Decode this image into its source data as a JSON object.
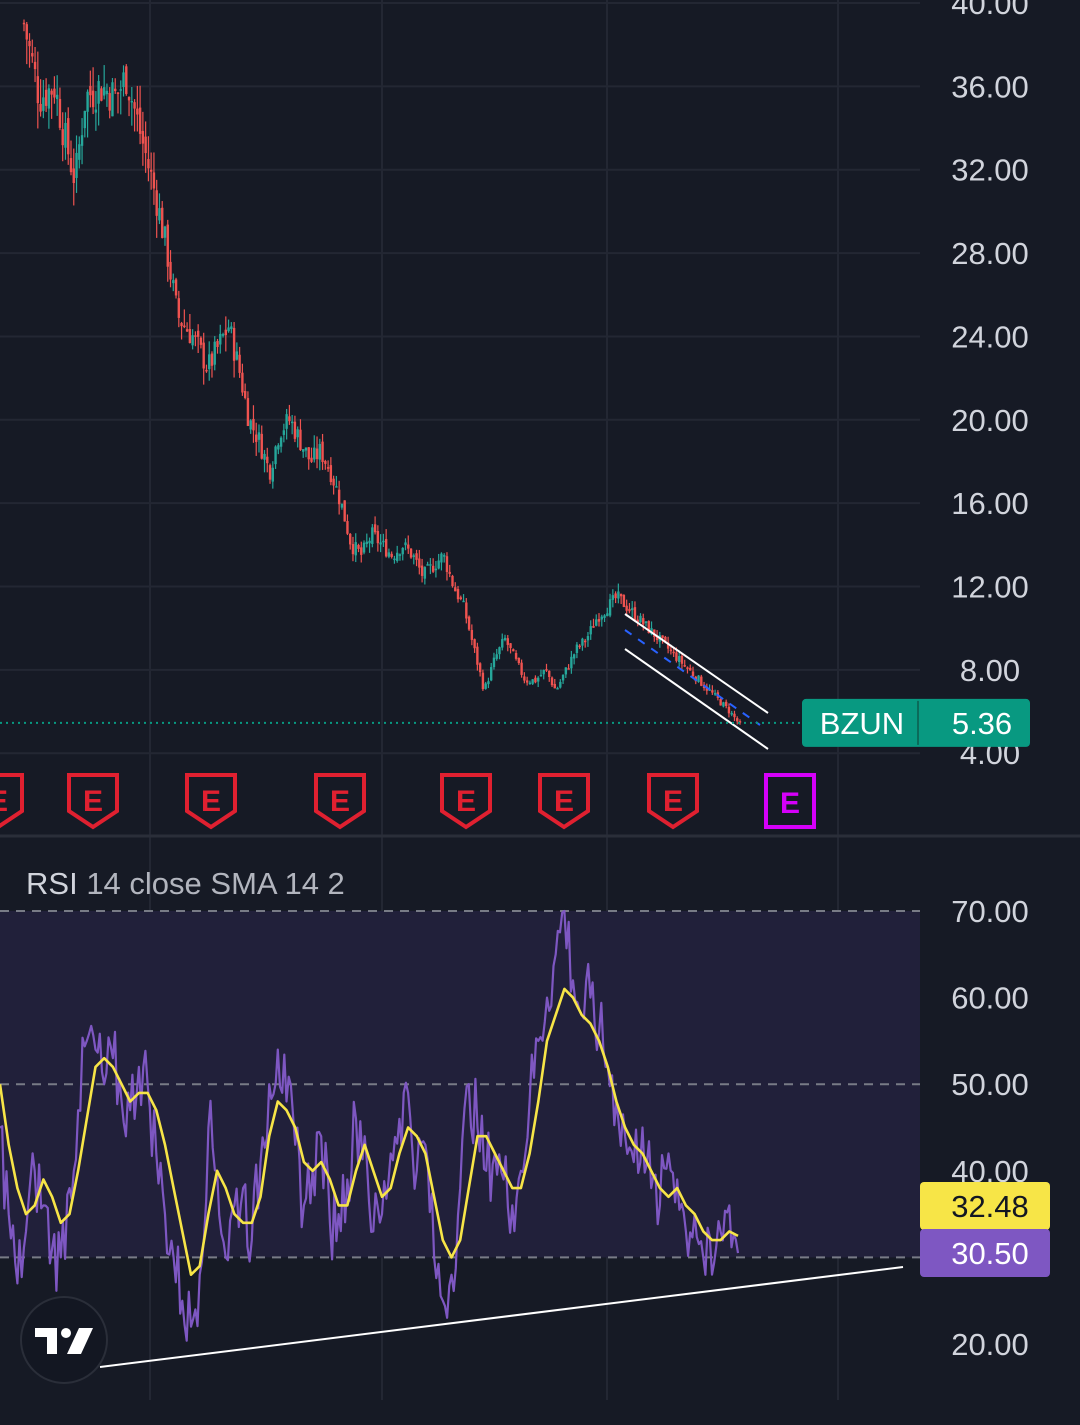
{
  "symbol": "BZUN",
  "last_price": "5.36",
  "colors": {
    "background": "#161a25",
    "grid": "#232733",
    "axis_text": "#d1d4dc",
    "up": "#26a69a",
    "down": "#ef5350",
    "price_badge": "#089981",
    "rsi_line": "#7e57c2",
    "rsi_ma": "#f7e547",
    "rsi_band_fill": "#21203a",
    "earnings_past": "#e02030",
    "earnings_future": "#d500f9",
    "trendline": "#ffffff"
  },
  "price_axis": {
    "ticks": [
      "40.00",
      "36.00",
      "32.00",
      "28.00",
      "24.00",
      "20.00",
      "16.00",
      "12.00",
      "8.00",
      "4.00"
    ]
  },
  "earnings": {
    "marker_label": "E",
    "past_count": 7,
    "upcoming_count": 1
  },
  "rsi": {
    "legend_name": "RSI",
    "legend_params": "14 close SMA 14 2",
    "axis_ticks": [
      "70.00",
      "60.00",
      "50.00",
      "40.00",
      "20.00"
    ],
    "ma_value": "32.48",
    "rsi_value": "30.50",
    "bands": [
      70,
      50,
      30
    ]
  },
  "chart_data": [
    {
      "type": "candlestick",
      "symbol": "BZUN",
      "ylim": [
        4,
        40
      ],
      "approx_close_path": [
        [
          0,
          39.0
        ],
        [
          3,
          35.5
        ],
        [
          6,
          36.0
        ],
        [
          8,
          33.5
        ],
        [
          10,
          31.5
        ],
        [
          12,
          35.5
        ],
        [
          15,
          36.0
        ],
        [
          18,
          35.5
        ],
        [
          20,
          36.5
        ],
        [
          22,
          34.5
        ],
        [
          24,
          32.5
        ],
        [
          26,
          30.5
        ],
        [
          28,
          28.0
        ],
        [
          30,
          25.0
        ],
        [
          33,
          24.0
        ],
        [
          36,
          22.5
        ],
        [
          38,
          23.5
        ],
        [
          40,
          24.5
        ],
        [
          42,
          22.5
        ],
        [
          44,
          20.0
        ],
        [
          46,
          19.0
        ],
        [
          48,
          17.5
        ],
        [
          50,
          19.5
        ],
        [
          52,
          20.0
        ],
        [
          54,
          19.0
        ],
        [
          56,
          18.0
        ],
        [
          58,
          18.5
        ],
        [
          60,
          17.5
        ],
        [
          62,
          16.0
        ],
        [
          64,
          14.0
        ],
        [
          66,
          13.5
        ],
        [
          68,
          14.5
        ],
        [
          70,
          14.0
        ],
        [
          72,
          13.5
        ],
        [
          74,
          14.0
        ],
        [
          76,
          13.5
        ],
        [
          78,
          12.5
        ],
        [
          80,
          13.0
        ],
        [
          82,
          13.5
        ],
        [
          84,
          12.0
        ],
        [
          86,
          11.0
        ],
        [
          88,
          9.0
        ],
        [
          90,
          7.0
        ],
        [
          92,
          8.5
        ],
        [
          94,
          9.5
        ],
        [
          96,
          8.5
        ],
        [
          98,
          7.5
        ],
        [
          100,
          7.5
        ],
        [
          102,
          8.0
        ],
        [
          104,
          7.0
        ],
        [
          106,
          8.0
        ],
        [
          108,
          9.0
        ],
        [
          110,
          9.5
        ],
        [
          112,
          10.5
        ],
        [
          114,
          11.0
        ],
        [
          116,
          11.5
        ],
        [
          118,
          11.0
        ],
        [
          120,
          10.5
        ],
        [
          122,
          10.0
        ],
        [
          124,
          9.5
        ],
        [
          126,
          9.0
        ],
        [
          128,
          8.5
        ],
        [
          130,
          8.0
        ],
        [
          132,
          7.5
        ],
        [
          134,
          7.0
        ],
        [
          136,
          6.5
        ],
        [
          138,
          6.0
        ],
        [
          140,
          5.36
        ]
      ],
      "last": 5.36
    },
    {
      "type": "line",
      "title": "RSI 14 close SMA 14 2",
      "ylim": [
        18,
        73
      ],
      "series": [
        {
          "name": "RSI",
          "values": [
            45,
            35,
            27,
            33,
            40,
            36,
            31,
            30,
            38,
            47,
            55,
            54,
            50,
            53,
            48,
            47,
            52,
            50,
            42,
            35,
            30,
            25,
            22,
            28,
            45,
            40,
            30,
            36,
            38,
            32,
            41,
            50,
            54,
            48,
            43,
            36,
            40,
            44,
            34,
            35,
            39,
            46,
            44,
            33,
            35,
            42,
            46,
            49,
            40,
            43,
            30,
            25,
            28,
            38,
            50,
            45,
            40,
            42,
            39,
            36,
            40,
            48,
            55,
            60,
            65,
            70,
            62,
            58,
            60,
            56,
            52,
            48,
            44,
            41,
            45,
            38,
            36,
            42,
            39,
            33,
            35,
            30,
            28,
            33,
            36,
            30.5
          ]
        },
        {
          "name": "SMA",
          "values": [
            50,
            43,
            38,
            35,
            36,
            39,
            37,
            34,
            35,
            40,
            46,
            52,
            53,
            52,
            50,
            48,
            49,
            49,
            47,
            43,
            38,
            33,
            28,
            29,
            35,
            40,
            38,
            35,
            34,
            34,
            37,
            44,
            48,
            47,
            45,
            41,
            40,
            41,
            39,
            36,
            36,
            40,
            43,
            40,
            37,
            38,
            42,
            45,
            44,
            42,
            37,
            32,
            30,
            32,
            38,
            44,
            44,
            42,
            40,
            38,
            38,
            42,
            48,
            55,
            58,
            61,
            60,
            58,
            57,
            55,
            52,
            48,
            45,
            43,
            42,
            40,
            38,
            37,
            38,
            36,
            35,
            33,
            32,
            32,
            33,
            32.48
          ]
        }
      ]
    }
  ]
}
